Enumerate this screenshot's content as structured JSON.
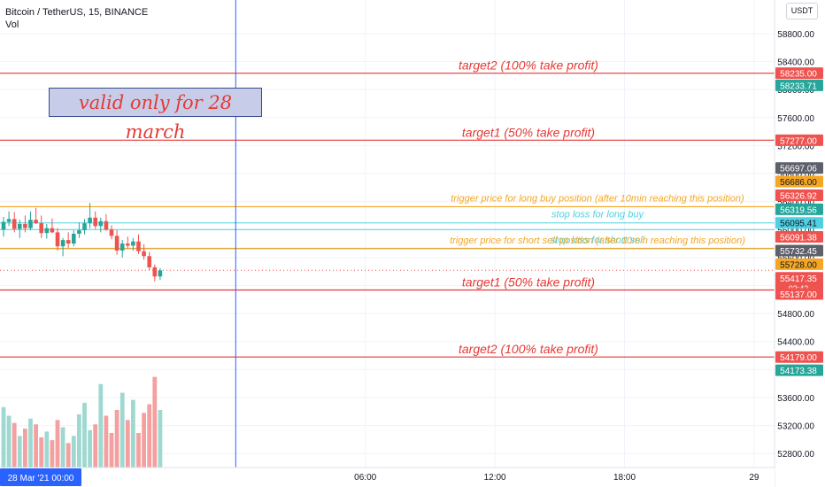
{
  "header": {
    "symbol_line": "Bitcoin / TetherUS, 15, BINANCE",
    "indicator": "Vol"
  },
  "currency_button": "USDT",
  "note_box": "valid only for 28 march",
  "colors": {
    "up": "#26a69a",
    "down": "#ef5350",
    "vol_up": "#9fd8d0",
    "vol_down": "#f4a0a0",
    "target": "#e53935",
    "trigger": "#f5a623",
    "stop": "#4dd0e1",
    "cursor": "#2962ff"
  },
  "chart_data": {
    "type": "candlestick",
    "title": "Bitcoin / TetherUS, 15, BINANCE",
    "ylim": [
      52600,
      59280
    ],
    "y_ticks": [
      52800,
      53200,
      53600,
      54000,
      54400,
      54800,
      55200,
      55600,
      56000,
      56400,
      56800,
      57200,
      57600,
      58000,
      58400,
      58800
    ],
    "y_tick_labels": [
      "52800.00",
      "53200.00",
      "53600.00",
      "54000.00",
      "54400.00",
      "54800.00",
      "55200.00",
      "55600.00",
      "56000.00",
      "56400.00",
      "56800.00",
      "57200.00",
      "57600.00",
      "58000.00",
      "58400.00",
      "58800.00"
    ],
    "x_ticks": [
      {
        "label": "06:00",
        "bar": 67
      },
      {
        "label": "12:00",
        "bar": 91
      },
      {
        "label": "18:00",
        "bar": 115
      },
      {
        "label": "29",
        "bar": 139
      },
      {
        "label": "06:00",
        "bar": 163
      },
      {
        "label": "12:00",
        "bar": 187
      }
    ],
    "x_range_bars": [
      0,
      217
    ],
    "cursor_label": "28 Mar '21   00:00",
    "cursor_bar": 43,
    "level_lines": [
      {
        "price": 58233.71,
        "kind": "target",
        "text": "target2 (100% take profit)",
        "size": "large"
      },
      {
        "price": 57277.0,
        "kind": "target",
        "text": "target1 (50% take profit)",
        "size": "large"
      },
      {
        "price": 56326.92,
        "kind": "trigger",
        "text": "trigger price for long buy position (after 10min reaching this position)",
        "size": "small"
      },
      {
        "price": 56095.41,
        "kind": "stop",
        "text": "stop loss for long buy",
        "size": "small"
      },
      {
        "price": 56000.0,
        "kind": "stop",
        "text": "",
        "size": "small"
      },
      {
        "price": 55732.45,
        "kind": "stop",
        "text": "stop loss for short sell",
        "size": "small"
      },
      {
        "price": 55728.0,
        "kind": "trigger",
        "text": "trigger price for short sell position (after 10min reaching this position)",
        "size": "small"
      },
      {
        "price": 55137.0,
        "kind": "target",
        "text": "target1 (50% take profit)",
        "size": "large"
      },
      {
        "price": 54179.0,
        "kind": "target",
        "text": "target2 (100% take profit)",
        "size": "large"
      }
    ],
    "last_price": 55417.35,
    "price_tags": [
      {
        "label": "58235.00",
        "price": 58235.0,
        "bg": "#ef5350",
        "fg": "#ffffff"
      },
      {
        "label": "58233.71",
        "price": 58060.0,
        "bg": "#26a69a",
        "fg": "#ffffff"
      },
      {
        "label": "57277.00",
        "price": 57277.0,
        "bg": "#ef5350",
        "fg": "#ffffff"
      },
      {
        "label": "56697.06",
        "price": 56880.0,
        "bg": "#5d606b",
        "fg": "#ffffff"
      },
      {
        "label": "56686.00",
        "price": 56686.0,
        "bg": "#f5a623",
        "fg": "#131722"
      },
      {
        "label": "56326.92",
        "price": 56490.0,
        "bg": "#ef5350",
        "fg": "#ffffff"
      },
      {
        "label": "56319.56",
        "price": 56290.0,
        "bg": "#26a69a",
        "fg": "#ffffff"
      },
      {
        "label": "56095.41",
        "price": 56095.41,
        "bg": "#4dd0e1",
        "fg": "#131722"
      },
      {
        "label": "56091.38",
        "price": 55895.0,
        "bg": "#ef5350",
        "fg": "#ffffff"
      },
      {
        "label": "55732.45",
        "price": 55700.0,
        "bg": "#5d606b",
        "fg": "#ffffff"
      },
      {
        "label": "55728.00",
        "price": 55505.0,
        "bg": "#f5a623",
        "fg": "#131722"
      },
      {
        "label": "55417.35",
        "price": 55310.0,
        "bg": "#ef5350",
        "fg": "#ffffff",
        "sub": "03:42"
      },
      {
        "label": "55137.00",
        "price": 55080.0,
        "bg": "#ef5350",
        "fg": "#ffffff"
      },
      {
        "label": "54179.00",
        "price": 54179.0,
        "bg": "#ef5350",
        "fg": "#ffffff"
      },
      {
        "label": "54173.38",
        "price": 53990.0,
        "bg": "#26a69a",
        "fg": "#ffffff"
      }
    ],
    "candles": [
      {
        "o": 56000,
        "h": 56180,
        "l": 55900,
        "c": 56110
      },
      {
        "o": 56110,
        "h": 56260,
        "l": 56050,
        "c": 56150
      },
      {
        "o": 56150,
        "h": 56250,
        "l": 55960,
        "c": 56010
      },
      {
        "o": 56010,
        "h": 56140,
        "l": 55880,
        "c": 56080
      },
      {
        "o": 56080,
        "h": 56200,
        "l": 55960,
        "c": 56020
      },
      {
        "o": 56020,
        "h": 56260,
        "l": 55990,
        "c": 56140
      },
      {
        "o": 56140,
        "h": 56310,
        "l": 56080,
        "c": 56090
      },
      {
        "o": 56090,
        "h": 56200,
        "l": 55880,
        "c": 55950
      },
      {
        "o": 55950,
        "h": 56080,
        "l": 55870,
        "c": 56020
      },
      {
        "o": 56020,
        "h": 56160,
        "l": 55950,
        "c": 55960
      },
      {
        "o": 55960,
        "h": 56020,
        "l": 55700,
        "c": 55760
      },
      {
        "o": 55760,
        "h": 55880,
        "l": 55620,
        "c": 55850
      },
      {
        "o": 55850,
        "h": 55960,
        "l": 55740,
        "c": 55800
      },
      {
        "o": 55800,
        "h": 55990,
        "l": 55760,
        "c": 55940
      },
      {
        "o": 55940,
        "h": 56100,
        "l": 55880,
        "c": 55990
      },
      {
        "o": 55990,
        "h": 56150,
        "l": 55930,
        "c": 56090
      },
      {
        "o": 56090,
        "h": 56380,
        "l": 56020,
        "c": 56170
      },
      {
        "o": 56170,
        "h": 56260,
        "l": 56010,
        "c": 56050
      },
      {
        "o": 56050,
        "h": 56170,
        "l": 55960,
        "c": 56120
      },
      {
        "o": 56120,
        "h": 56220,
        "l": 55980,
        "c": 56000
      },
      {
        "o": 56000,
        "h": 56060,
        "l": 55860,
        "c": 55910
      },
      {
        "o": 55910,
        "h": 55990,
        "l": 55640,
        "c": 55700
      },
      {
        "o": 55700,
        "h": 55850,
        "l": 55600,
        "c": 55800
      },
      {
        "o": 55800,
        "h": 55900,
        "l": 55730,
        "c": 55770
      },
      {
        "o": 55770,
        "h": 55880,
        "l": 55700,
        "c": 55830
      },
      {
        "o": 55830,
        "h": 55930,
        "l": 55650,
        "c": 55690
      },
      {
        "o": 55690,
        "h": 55790,
        "l": 55570,
        "c": 55620
      },
      {
        "o": 55620,
        "h": 55680,
        "l": 55420,
        "c": 55460
      },
      {
        "o": 55460,
        "h": 55500,
        "l": 55260,
        "c": 55330
      },
      {
        "o": 55330,
        "h": 55450,
        "l": 55280,
        "c": 55417
      }
    ],
    "volumes": [
      0.42,
      0.36,
      0.31,
      0.22,
      0.27,
      0.34,
      0.3,
      0.21,
      0.25,
      0.19,
      0.33,
      0.28,
      0.17,
      0.22,
      0.37,
      0.45,
      0.26,
      0.3,
      0.58,
      0.36,
      0.24,
      0.4,
      0.52,
      0.33,
      0.47,
      0.24,
      0.38,
      0.44,
      0.63,
      0.4
    ],
    "vol_scale": [
      0,
      2.6
    ]
  }
}
